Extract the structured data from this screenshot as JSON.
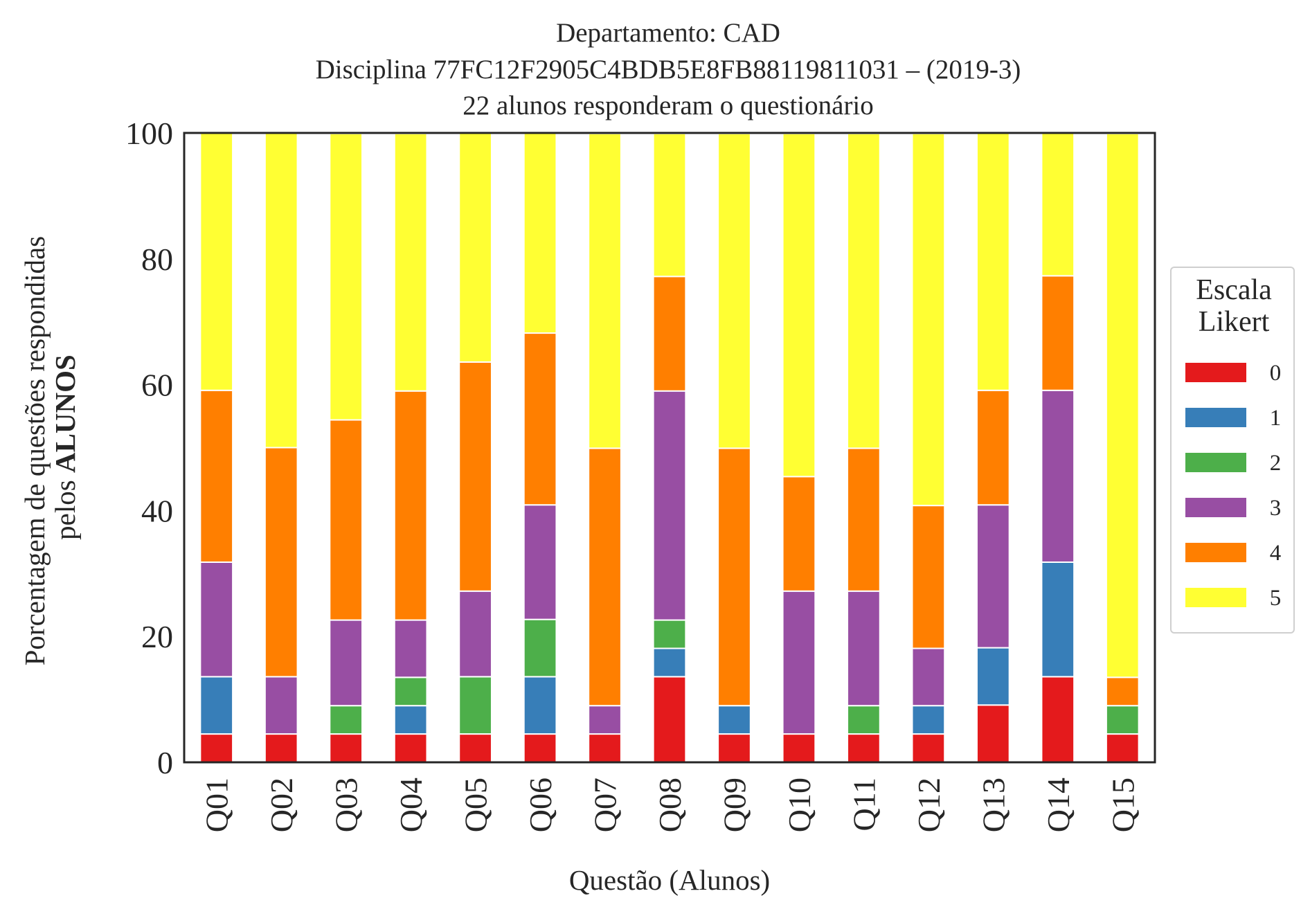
{
  "chart_data": {
    "type": "bar",
    "stacked": true,
    "title": [
      "Departamento: CAD",
      "Disciplina 77FC12F2905C4BDB5E8FB88119811031 – (2019-3)",
      "22 alunos responderam o questionário"
    ],
    "xlabel": "Questão (Alunos)",
    "ylabel_line1": "Porcentagem de questões respondidas",
    "ylabel_line2_prefix": "pelos ",
    "ylabel_line2_bold": "ALUNOS",
    "ylim": [
      0,
      100
    ],
    "yticks": [
      "0",
      "20",
      "40",
      "60",
      "80",
      "100"
    ],
    "categories": [
      "Q01",
      "Q02",
      "Q03",
      "Q04",
      "Q05",
      "Q06",
      "Q07",
      "Q08",
      "Q09",
      "Q10",
      "Q11",
      "Q12",
      "Q13",
      "Q14",
      "Q15"
    ],
    "legend_title": [
      "Escala",
      "Likert"
    ],
    "legend_placement": "center-right, outside",
    "grid": false,
    "series": [
      {
        "name": "0",
        "color": "#e41a1c",
        "values": [
          4.5,
          4.5,
          4.5,
          4.5,
          4.5,
          4.5,
          4.5,
          13.6,
          4.5,
          4.5,
          4.5,
          4.5,
          9.1,
          13.6,
          4.5
        ]
      },
      {
        "name": "1",
        "color": "#377eb8",
        "values": [
          9.1,
          0,
          0,
          4.5,
          0,
          9.1,
          0,
          4.5,
          4.5,
          0,
          0,
          4.5,
          9.1,
          18.2,
          0
        ]
      },
      {
        "name": "2",
        "color": "#4daf4a",
        "values": [
          0,
          0,
          4.5,
          4.5,
          9.1,
          9.1,
          0,
          4.5,
          0,
          0,
          4.5,
          0,
          0,
          0,
          4.5
        ]
      },
      {
        "name": "3",
        "color": "#984ea3",
        "values": [
          18.2,
          9.1,
          13.6,
          9.1,
          13.6,
          18.2,
          4.5,
          36.4,
          0,
          22.7,
          18.2,
          9.1,
          22.7,
          27.3,
          0
        ]
      },
      {
        "name": "4",
        "color": "#ff7f00",
        "values": [
          27.3,
          36.4,
          31.8,
          36.4,
          36.4,
          27.3,
          40.9,
          18.2,
          40.9,
          18.2,
          22.7,
          22.7,
          18.2,
          18.2,
          4.5
        ]
      },
      {
        "name": "5",
        "color": "#ffff33",
        "values": [
          40.9,
          50.0,
          45.5,
          40.9,
          36.4,
          31.8,
          50.0,
          22.7,
          50.0,
          54.5,
          50.0,
          59.1,
          40.9,
          22.7,
          86.4
        ]
      }
    ]
  }
}
